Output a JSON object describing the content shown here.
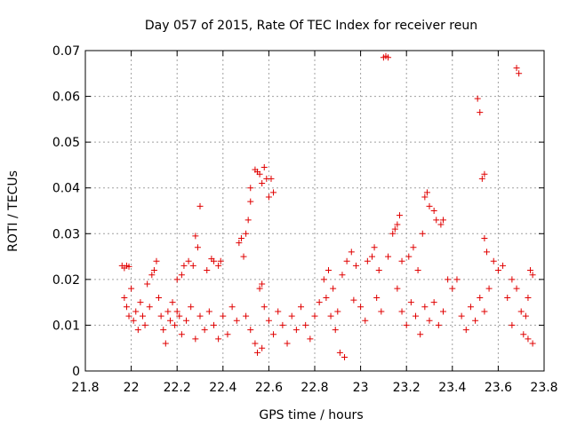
{
  "chart_data": {
    "type": "scatter",
    "title": "Day 057 of 2015, Rate Of TEC Index for receiver reun",
    "xlabel": "GPS time / hours",
    "ylabel": "ROTI / TECUs",
    "xlim": [
      21.8,
      23.8
    ],
    "ylim": [
      0,
      0.07
    ],
    "xticks": [
      "21.8",
      "22",
      "22.2",
      "22.4",
      "22.6",
      "22.8",
      "23",
      "23.2",
      "23.4",
      "23.6",
      "23.8"
    ],
    "yticks": [
      "0",
      "0.01",
      "0.02",
      "0.03",
      "0.04",
      "0.05",
      "0.06",
      "0.07"
    ],
    "grid": true,
    "marker": "+",
    "color": "#e00000",
    "series": [
      {
        "name": "reun",
        "points": [
          [
            21.96,
            0.023
          ],
          [
            21.97,
            0.0225
          ],
          [
            21.98,
            0.023
          ],
          [
            21.99,
            0.0228
          ],
          [
            21.97,
            0.016
          ],
          [
            21.98,
            0.014
          ],
          [
            21.99,
            0.012
          ],
          [
            22.0,
            0.018
          ],
          [
            22.01,
            0.011
          ],
          [
            22.02,
            0.013
          ],
          [
            22.03,
            0.009
          ],
          [
            22.04,
            0.015
          ],
          [
            22.05,
            0.012
          ],
          [
            22.06,
            0.01
          ],
          [
            22.07,
            0.019
          ],
          [
            22.08,
            0.014
          ],
          [
            22.09,
            0.021
          ],
          [
            22.1,
            0.022
          ],
          [
            22.11,
            0.024
          ],
          [
            22.12,
            0.016
          ],
          [
            22.13,
            0.012
          ],
          [
            22.14,
            0.009
          ],
          [
            22.15,
            0.006
          ],
          [
            22.16,
            0.013
          ],
          [
            22.17,
            0.011
          ],
          [
            22.18,
            0.015
          ],
          [
            22.19,
            0.01
          ],
          [
            22.2,
            0.013
          ],
          [
            22.2,
            0.02
          ],
          [
            22.22,
            0.021
          ],
          [
            22.23,
            0.023
          ],
          [
            22.25,
            0.024
          ],
          [
            22.27,
            0.023
          ],
          [
            22.28,
            0.0295
          ],
          [
            22.29,
            0.027
          ],
          [
            22.3,
            0.036
          ],
          [
            22.21,
            0.012
          ],
          [
            22.22,
            0.008
          ],
          [
            22.24,
            0.011
          ],
          [
            22.26,
            0.014
          ],
          [
            22.28,
            0.007
          ],
          [
            22.3,
            0.012
          ],
          [
            22.32,
            0.009
          ],
          [
            22.34,
            0.013
          ],
          [
            22.36,
            0.01
          ],
          [
            22.38,
            0.007
          ],
          [
            22.33,
            0.022
          ],
          [
            22.35,
            0.0245
          ],
          [
            22.36,
            0.024
          ],
          [
            22.38,
            0.023
          ],
          [
            22.39,
            0.024
          ],
          [
            22.4,
            0.012
          ],
          [
            22.42,
            0.008
          ],
          [
            22.44,
            0.014
          ],
          [
            22.46,
            0.011
          ],
          [
            22.47,
            0.028
          ],
          [
            22.48,
            0.029
          ],
          [
            22.49,
            0.025
          ],
          [
            22.5,
            0.03
          ],
          [
            22.51,
            0.033
          ],
          [
            22.52,
            0.037
          ],
          [
            22.52,
            0.04
          ],
          [
            22.54,
            0.044
          ],
          [
            22.55,
            0.0435
          ],
          [
            22.56,
            0.043
          ],
          [
            22.57,
            0.041
          ],
          [
            22.58,
            0.0445
          ],
          [
            22.59,
            0.042
          ],
          [
            22.6,
            0.038
          ],
          [
            22.61,
            0.042
          ],
          [
            22.62,
            0.039
          ],
          [
            22.56,
            0.018
          ],
          [
            22.57,
            0.019
          ],
          [
            22.5,
            0.012
          ],
          [
            22.52,
            0.009
          ],
          [
            22.54,
            0.006
          ],
          [
            22.55,
            0.004
          ],
          [
            22.57,
            0.005
          ],
          [
            22.58,
            0.014
          ],
          [
            22.6,
            0.011
          ],
          [
            22.62,
            0.008
          ],
          [
            22.64,
            0.013
          ],
          [
            22.66,
            0.01
          ],
          [
            22.68,
            0.006
          ],
          [
            22.7,
            0.012
          ],
          [
            22.72,
            0.009
          ],
          [
            22.74,
            0.014
          ],
          [
            22.76,
            0.01
          ],
          [
            22.78,
            0.007
          ],
          [
            22.8,
            0.012
          ],
          [
            22.82,
            0.015
          ],
          [
            22.84,
            0.02
          ],
          [
            22.86,
            0.022
          ],
          [
            22.88,
            0.018
          ],
          [
            22.9,
            0.013
          ],
          [
            22.85,
            0.016
          ],
          [
            22.87,
            0.012
          ],
          [
            22.89,
            0.009
          ],
          [
            22.91,
            0.004
          ],
          [
            22.93,
            0.003
          ],
          [
            22.92,
            0.021
          ],
          [
            22.94,
            0.024
          ],
          [
            22.96,
            0.026
          ],
          [
            22.98,
            0.023
          ],
          [
            22.97,
            0.0155
          ],
          [
            23.0,
            0.014
          ],
          [
            23.02,
            0.011
          ],
          [
            23.03,
            0.024
          ],
          [
            23.05,
            0.025
          ],
          [
            23.06,
            0.027
          ],
          [
            23.08,
            0.022
          ],
          [
            23.07,
            0.016
          ],
          [
            23.09,
            0.013
          ],
          [
            23.1,
            0.0685
          ],
          [
            23.11,
            0.0688
          ],
          [
            23.12,
            0.0685
          ],
          [
            23.12,
            0.025
          ],
          [
            23.14,
            0.03
          ],
          [
            23.15,
            0.031
          ],
          [
            23.16,
            0.032
          ],
          [
            23.17,
            0.034
          ],
          [
            23.18,
            0.024
          ],
          [
            23.16,
            0.018
          ],
          [
            23.18,
            0.013
          ],
          [
            23.2,
            0.01
          ],
          [
            23.22,
            0.015
          ],
          [
            23.21,
            0.025
          ],
          [
            23.23,
            0.027
          ],
          [
            23.25,
            0.022
          ],
          [
            23.27,
            0.03
          ],
          [
            23.28,
            0.038
          ],
          [
            23.29,
            0.039
          ],
          [
            23.3,
            0.036
          ],
          [
            23.32,
            0.035
          ],
          [
            23.33,
            0.033
          ],
          [
            23.35,
            0.032
          ],
          [
            23.36,
            0.033
          ],
          [
            23.24,
            0.012
          ],
          [
            23.26,
            0.008
          ],
          [
            23.28,
            0.014
          ],
          [
            23.3,
            0.011
          ],
          [
            23.32,
            0.015
          ],
          [
            23.34,
            0.01
          ],
          [
            23.36,
            0.013
          ],
          [
            23.38,
            0.02
          ],
          [
            23.4,
            0.018
          ],
          [
            23.42,
            0.02
          ],
          [
            23.44,
            0.012
          ],
          [
            23.46,
            0.009
          ],
          [
            23.48,
            0.014
          ],
          [
            23.5,
            0.011
          ],
          [
            23.51,
            0.0595
          ],
          [
            23.52,
            0.0565
          ],
          [
            23.53,
            0.042
          ],
          [
            23.54,
            0.043
          ],
          [
            23.54,
            0.029
          ],
          [
            23.55,
            0.026
          ],
          [
            23.52,
            0.016
          ],
          [
            23.54,
            0.013
          ],
          [
            23.56,
            0.018
          ],
          [
            23.58,
            0.024
          ],
          [
            23.6,
            0.022
          ],
          [
            23.62,
            0.023
          ],
          [
            23.64,
            0.016
          ],
          [
            23.66,
            0.01
          ],
          [
            23.68,
            0.0662
          ],
          [
            23.69,
            0.065
          ],
          [
            23.66,
            0.02
          ],
          [
            23.68,
            0.018
          ],
          [
            23.7,
            0.013
          ],
          [
            23.71,
            0.008
          ],
          [
            23.72,
            0.012
          ],
          [
            23.73,
            0.016
          ],
          [
            23.74,
            0.022
          ],
          [
            23.75,
            0.021
          ],
          [
            23.75,
            0.006
          ],
          [
            23.73,
            0.007
          ]
        ]
      }
    ]
  }
}
